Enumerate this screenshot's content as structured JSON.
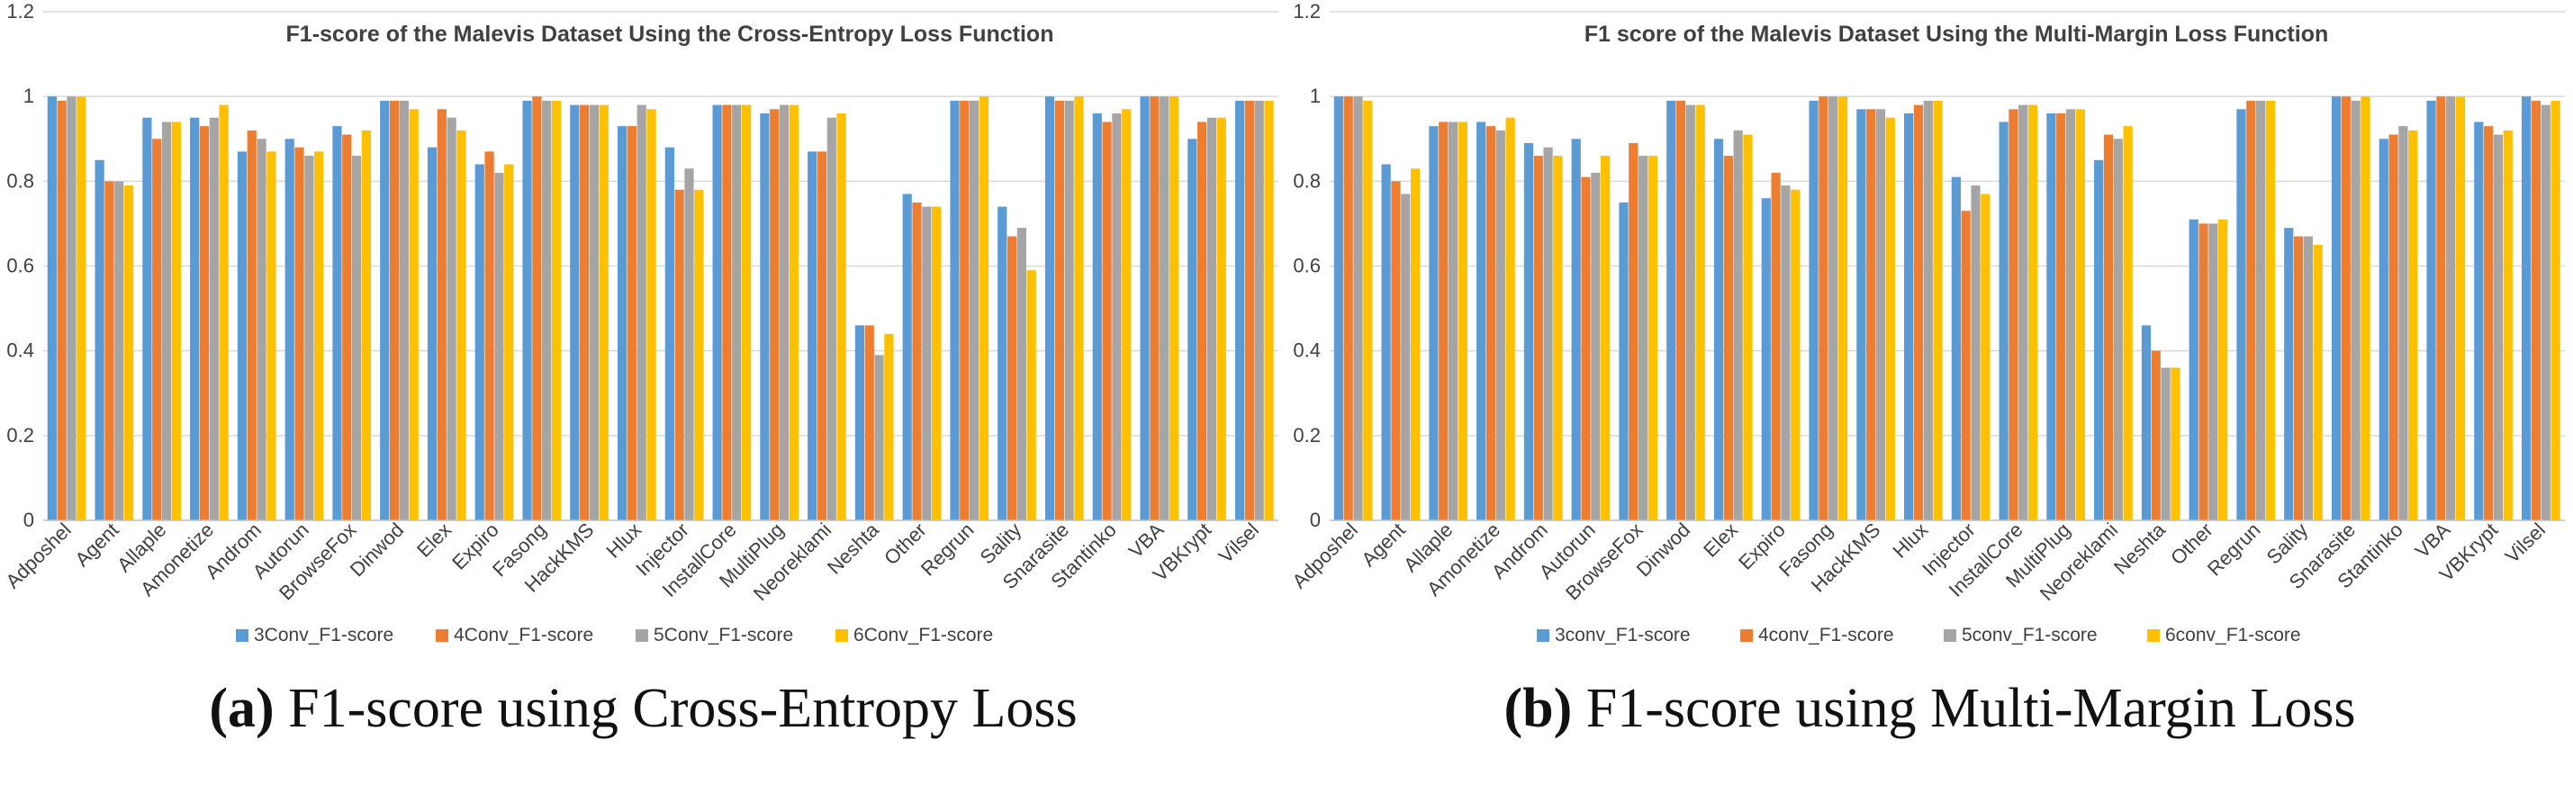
{
  "chart_data": [
    {
      "type": "bar",
      "title": "F1-score of the Malevis Dataset Using the Cross-Entropy Loss Function",
      "caption_label": "(a)",
      "caption_text": "F1-score using Cross-Entropy Loss",
      "xlabel": "",
      "ylabel": "",
      "ylim": [
        0,
        1.2
      ],
      "yticks": [
        "0",
        "0.2",
        "0.4",
        "0.6",
        "0.8",
        "1",
        "1.2"
      ],
      "grid": true,
      "legend_position": "bottom",
      "categories": [
        "Adposhel",
        "Agent",
        "Allaple",
        "Amonetize",
        "Androm",
        "Autorun",
        "BrowseFox",
        "Dinwod",
        "Elex",
        "Expiro",
        "Fasong",
        "HackKMS",
        "Hlux",
        "Injector",
        "InstallCore",
        "MultiPlug",
        "Neoreklami",
        "Neshta",
        "Other",
        "Regrun",
        "Sality",
        "Snarasite",
        "Stantinko",
        "VBA",
        "VBKrypt",
        "Vilsel"
      ],
      "series": [
        {
          "name": "3Conv_F1-score",
          "color": "#5b9bd5",
          "values": [
            1.0,
            0.85,
            0.95,
            0.95,
            0.87,
            0.9,
            0.93,
            0.99,
            0.88,
            0.84,
            0.99,
            0.98,
            0.93,
            0.88,
            0.98,
            0.96,
            0.87,
            0.46,
            0.77,
            0.99,
            0.74,
            1.0,
            0.96,
            1.0,
            0.9,
            0.99
          ]
        },
        {
          "name": "4Conv_F1-score",
          "color": "#ed7d31",
          "values": [
            0.99,
            0.8,
            0.9,
            0.93,
            0.92,
            0.88,
            0.91,
            0.99,
            0.97,
            0.87,
            1.0,
            0.98,
            0.93,
            0.78,
            0.98,
            0.97,
            0.87,
            0.46,
            0.75,
            0.99,
            0.67,
            0.99,
            0.94,
            1.0,
            0.94,
            0.99
          ]
        },
        {
          "name": "5Conv_F1-score",
          "color": "#a5a5a5",
          "values": [
            1.0,
            0.8,
            0.94,
            0.95,
            0.9,
            0.86,
            0.86,
            0.99,
            0.95,
            0.82,
            0.99,
            0.98,
            0.98,
            0.83,
            0.98,
            0.98,
            0.95,
            0.39,
            0.74,
            0.99,
            0.69,
            0.99,
            0.96,
            1.0,
            0.95,
            0.99
          ]
        },
        {
          "name": "6Conv_F1-score",
          "color": "#ffc000",
          "values": [
            1.0,
            0.79,
            0.94,
            0.98,
            0.87,
            0.87,
            0.92,
            0.97,
            0.92,
            0.84,
            0.99,
            0.98,
            0.97,
            0.78,
            0.98,
            0.98,
            0.96,
            0.44,
            0.74,
            1.0,
            0.59,
            1.0,
            0.97,
            1.0,
            0.95,
            0.99
          ]
        }
      ]
    },
    {
      "type": "bar",
      "title": "F1 score of the Malevis Dataset Using the Multi-Margin Loss Function",
      "caption_label": "(b)",
      "caption_text": "F1-score using Multi-Margin Loss",
      "xlabel": "",
      "ylabel": "",
      "ylim": [
        0,
        1.2
      ],
      "yticks": [
        "0",
        "0.2",
        "0.4",
        "0.6",
        "0.8",
        "1",
        "1.2"
      ],
      "grid": true,
      "legend_position": "bottom",
      "categories": [
        "Adposhel",
        "Agent",
        "Allaple",
        "Amonetize",
        "Androm",
        "Autorun",
        "BrowseFox",
        "Dinwod",
        "Elex",
        "Expiro",
        "Fasong",
        "HackKMS",
        "Hlux",
        "Injector",
        "InstallCore",
        "MultiPlug",
        "Neoreklami",
        "Neshta",
        "Other",
        "Regrun",
        "Sality",
        "Snarasite",
        "Stantinko",
        "VBA",
        "VBKrypt",
        "Vilsel"
      ],
      "series": [
        {
          "name": "3conv_F1-score",
          "color": "#5b9bd5",
          "values": [
            1.0,
            0.84,
            0.93,
            0.94,
            0.89,
            0.9,
            0.75,
            0.99,
            0.9,
            0.76,
            0.99,
            0.97,
            0.96,
            0.81,
            0.94,
            0.96,
            0.85,
            0.46,
            0.71,
            0.97,
            0.69,
            1.0,
            0.9,
            0.99,
            0.94,
            1.0
          ]
        },
        {
          "name": "4conv_F1-score",
          "color": "#ed7d31",
          "values": [
            1.0,
            0.8,
            0.94,
            0.93,
            0.86,
            0.81,
            0.89,
            0.99,
            0.86,
            0.82,
            1.0,
            0.97,
            0.98,
            0.73,
            0.97,
            0.96,
            0.91,
            0.4,
            0.7,
            0.99,
            0.67,
            1.0,
            0.91,
            1.0,
            0.93,
            0.99
          ]
        },
        {
          "name": "5conv_F1-score",
          "color": "#a5a5a5",
          "values": [
            1.0,
            0.77,
            0.94,
            0.92,
            0.88,
            0.82,
            0.86,
            0.98,
            0.92,
            0.79,
            1.0,
            0.97,
            0.99,
            0.79,
            0.98,
            0.97,
            0.9,
            0.36,
            0.7,
            0.99,
            0.67,
            0.99,
            0.93,
            1.0,
            0.91,
            0.98
          ]
        },
        {
          "name": "6conv_F1-score",
          "color": "#ffc000",
          "values": [
            0.99,
            0.83,
            0.94,
            0.95,
            0.86,
            0.86,
            0.86,
            0.98,
            0.91,
            0.78,
            1.0,
            0.95,
            0.99,
            0.77,
            0.98,
            0.97,
            0.93,
            0.36,
            0.71,
            0.99,
            0.65,
            1.0,
            0.92,
            1.0,
            0.92,
            0.99
          ]
        }
      ]
    }
  ]
}
